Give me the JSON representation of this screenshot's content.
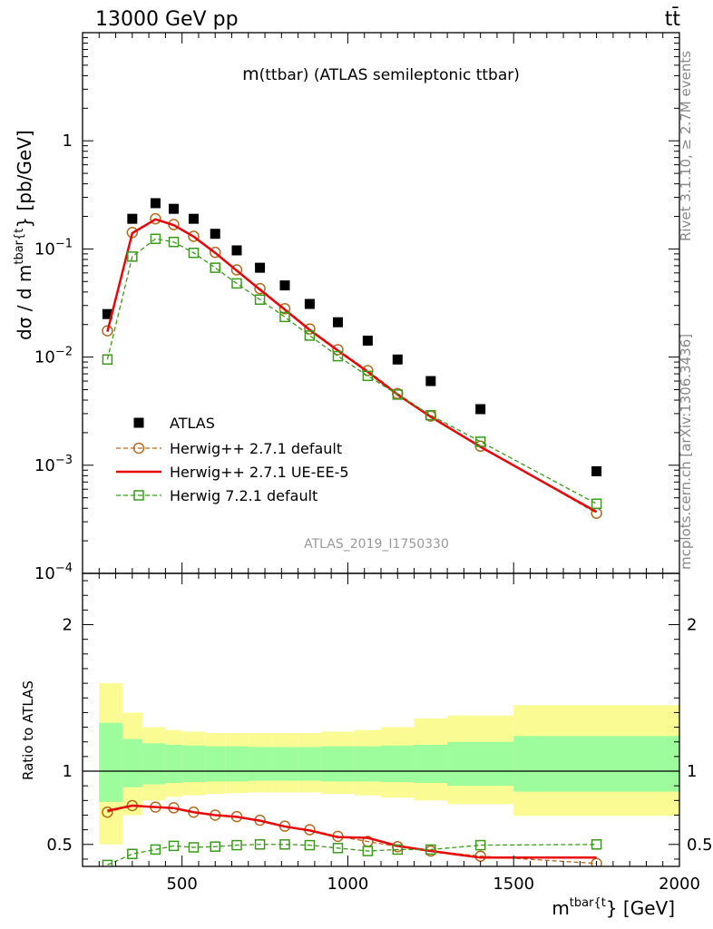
{
  "header": {
    "left": "13000 GeV pp",
    "right": "tt̄"
  },
  "side_text": {
    "rivet": "Rivet 3.1.10, ≥ 2.7M events",
    "mcplots": "mcplots.cern.ch [arXiv:1306.3436]"
  },
  "chart_data": [
    {
      "type": "scatter",
      "title_main": "m",
      "title_rest": "(ttbar) (ATLAS semileptonic ttbar)",
      "analysis_id": "ATLAS_2019_I1750330",
      "ylabel_pre": "dσ / d m",
      "ylabel_sup": "tbar{t",
      "ylabel_post": "} [pb/GeV]",
      "yscale": "log",
      "ylim": [
        0.0001,
        10
      ],
      "xlim": [
        200,
        2000
      ],
      "ytick_labels": [
        {
          "v": 1,
          "t": "1"
        },
        {
          "v": 0.1,
          "b": "10",
          "e": "−1"
        },
        {
          "v": 0.01,
          "b": "10",
          "e": "−2"
        },
        {
          "v": 0.001,
          "b": "10",
          "e": "−3"
        },
        {
          "v": 0.0001,
          "b": "10",
          "e": "−4"
        }
      ],
      "legend_position": "middle-left",
      "x": [
        275,
        350,
        420,
        475,
        535,
        600,
        665,
        735,
        810,
        885,
        970,
        1060,
        1150,
        1250,
        1400,
        1750
      ],
      "series": [
        {
          "name": "ATLAS",
          "marker": "filled-square",
          "color": "#000000",
          "values": [
            0.025,
            0.19,
            0.265,
            0.235,
            0.19,
            0.138,
            0.097,
            0.067,
            0.046,
            0.031,
            0.021,
            0.0142,
            0.0095,
            0.006,
            0.0033,
            0.00088
          ]
        },
        {
          "name": "Herwig++ 2.7.1 default",
          "marker": "open-circle",
          "line": "dashed",
          "color": "#b26b21",
          "values": [
            0.0175,
            0.142,
            0.19,
            0.168,
            0.131,
            0.093,
            0.064,
            0.043,
            0.028,
            0.0182,
            0.0117,
            0.0075,
            0.0046,
            0.00285,
            0.0015,
            0.00036
          ]
        },
        {
          "name": "Herwig++ 2.7.1 UE-EE-5",
          "marker": "none",
          "line": "solid",
          "color": "#e8060a",
          "values": [
            0.0172,
            0.14,
            0.188,
            0.166,
            0.13,
            0.092,
            0.063,
            0.042,
            0.0275,
            0.0178,
            0.0115,
            0.0073,
            0.0045,
            0.0028,
            0.00148,
            0.00037
          ]
        },
        {
          "name": "Herwig 7.2.1 default",
          "marker": "open-square",
          "line": "dashed",
          "color": "#3a9a1a",
          "values": [
            0.0095,
            0.085,
            0.124,
            0.116,
            0.092,
            0.067,
            0.048,
            0.034,
            0.0235,
            0.0158,
            0.0102,
            0.0067,
            0.0045,
            0.0029,
            0.00165,
            0.00044
          ]
        }
      ]
    },
    {
      "type": "line",
      "ylabel": "Ratio to ATLAS",
      "xlabel_pre": "m",
      "xlabel_sup": "tbar{t",
      "xlabel_post": "} [GeV]",
      "xlim": [
        200,
        2000
      ],
      "ylim": [
        0.35,
        2.35
      ],
      "xtick_labels": [
        "500",
        "1000",
        "1500",
        "2000"
      ],
      "ytick_labels": [
        "0.5",
        "1",
        "2"
      ],
      "bin_edges": [
        250,
        320,
        380,
        450,
        500,
        570,
        630,
        700,
        770,
        850,
        920,
        1020,
        1100,
        1200,
        1300,
        1500,
        2000
      ],
      "band_inner": {
        "color": "#9dfc9b",
        "lower": [
          0.79,
          0.89,
          0.91,
          0.92,
          0.925,
          0.93,
          0.93,
          0.935,
          0.935,
          0.935,
          0.93,
          0.93,
          0.925,
          0.92,
          0.9,
          0.86
        ],
        "upper": [
          1.33,
          1.22,
          1.19,
          1.18,
          1.175,
          1.17,
          1.17,
          1.165,
          1.165,
          1.165,
          1.17,
          1.17,
          1.175,
          1.18,
          1.2,
          1.24
        ]
      },
      "band_outer": {
        "color": "#fbfb93",
        "lower": [
          0.5,
          0.7,
          0.8,
          0.825,
          0.835,
          0.845,
          0.85,
          0.855,
          0.855,
          0.855,
          0.845,
          0.835,
          0.82,
          0.8,
          0.775,
          0.695
        ],
        "upper": [
          1.6,
          1.4,
          1.3,
          1.28,
          1.27,
          1.26,
          1.26,
          1.26,
          1.26,
          1.26,
          1.27,
          1.28,
          1.3,
          1.36,
          1.38,
          1.45
        ]
      },
      "x": [
        275,
        350,
        420,
        475,
        535,
        600,
        665,
        735,
        810,
        885,
        970,
        1060,
        1150,
        1250,
        1400,
        1750
      ],
      "series": [
        {
          "name": "Herwig++ 2.7.1 default",
          "marker": "open-circle",
          "line": "dashed",
          "color": "#b26b21",
          "values": [
            0.72,
            0.765,
            0.755,
            0.75,
            0.72,
            0.7,
            0.69,
            0.665,
            0.625,
            0.6,
            0.555,
            0.52,
            0.485,
            0.455,
            0.42,
            0.37
          ]
        },
        {
          "name": "Herwig++ 2.7.1 UE-EE-5",
          "marker": "none",
          "line": "solid",
          "color": "#e8060a",
          "values": [
            0.73,
            0.765,
            0.755,
            0.748,
            0.72,
            0.7,
            0.688,
            0.662,
            0.622,
            0.595,
            0.55,
            0.545,
            0.49,
            0.455,
            0.41,
            0.41
          ]
        },
        {
          "name": "Herwig 7.2.1 default",
          "marker": "open-square",
          "line": "dashed",
          "color": "#3a9a1a",
          "values": [
            0.36,
            0.435,
            0.465,
            0.49,
            0.48,
            0.485,
            0.495,
            0.5,
            0.5,
            0.495,
            0.475,
            0.455,
            0.465,
            0.465,
            0.495,
            0.5
          ]
        }
      ]
    }
  ]
}
